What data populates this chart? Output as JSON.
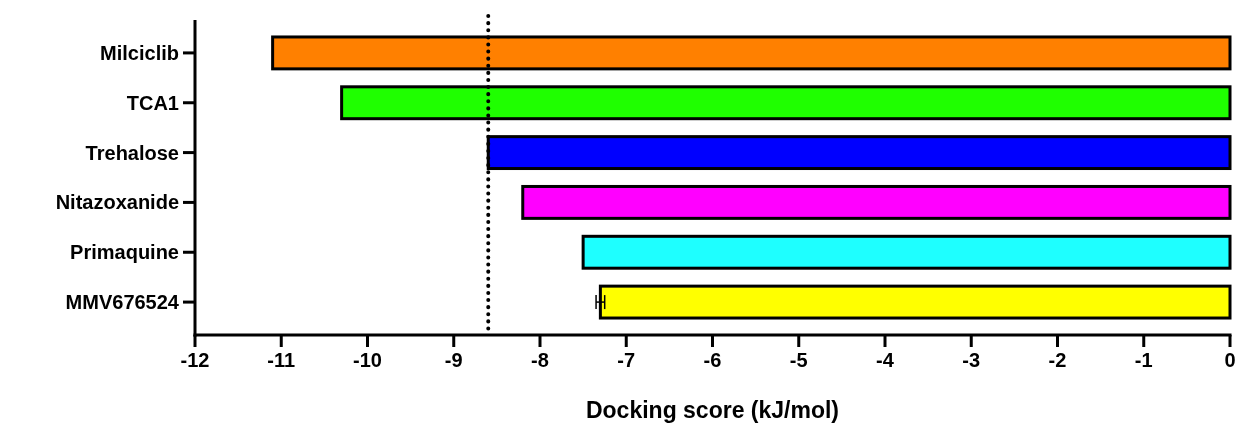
{
  "chart_data": {
    "type": "bar",
    "orientation": "horizontal",
    "xlabel": "Docking score (kJ/mol)",
    "categories": [
      "Milciclib",
      "TCA1",
      "Trehalose",
      "Nitazoxanide",
      "Primaquine",
      "MMV676524"
    ],
    "values": [
      -11.1,
      -10.3,
      -8.6,
      -8.2,
      -7.5,
      -7.3
    ],
    "colors": [
      "#ff8000",
      "#1fff00",
      "#0000ff",
      "#ff00ff",
      "#1effff",
      "#ffff00"
    ],
    "errors": [
      null,
      null,
      null,
      null,
      null,
      0.05
    ],
    "xlim": [
      -12,
      0
    ],
    "xticks": [
      -12,
      -11,
      -10,
      -9,
      -8,
      -7,
      -6,
      -5,
      -4,
      -3,
      -2,
      -1,
      0
    ],
    "ref_lines": [
      {
        "axis": "x",
        "value": -8.6,
        "line_style": "dotted"
      }
    ]
  }
}
